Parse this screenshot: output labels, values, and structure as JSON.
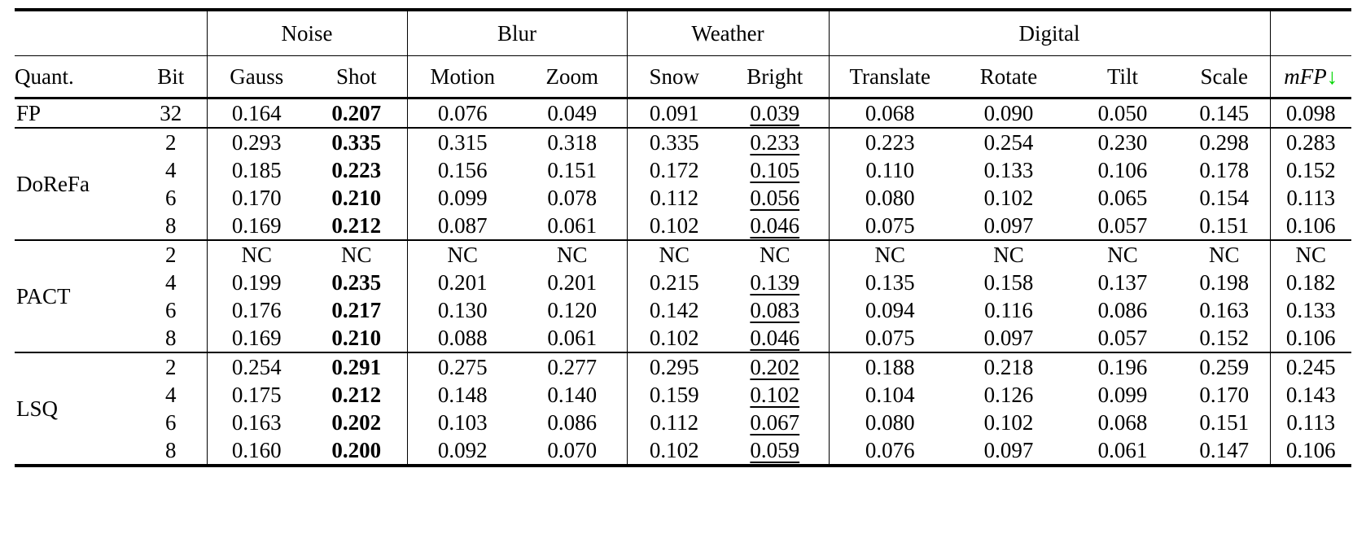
{
  "table": {
    "group_headers": [
      {
        "label": "",
        "span": 2
      },
      {
        "label": "Noise",
        "span": 2
      },
      {
        "label": "Blur",
        "span": 2
      },
      {
        "label": "Weather",
        "span": 2
      },
      {
        "label": "Digital",
        "span": 4
      },
      {
        "label": "",
        "span": 1
      }
    ],
    "column_headers": [
      "Quant.",
      "Bit",
      "Gauss",
      "Shot",
      "Motion",
      "Zoom",
      "Snow",
      "Bright",
      "Translate",
      "Rotate",
      "Tilt",
      "Scale",
      "mFP"
    ],
    "mfp_label": "mFP",
    "mfp_arrow": "↓",
    "arrow_color": "#00d500",
    "sections": [
      {
        "quant": "FP",
        "rows": [
          {
            "bit": "32",
            "values": [
              "0.164",
              "0.207",
              "0.076",
              "0.049",
              "0.091",
              "0.039",
              "0.068",
              "0.090",
              "0.050",
              "0.145",
              "0.098"
            ]
          }
        ]
      },
      {
        "quant": "DoReFa",
        "rows": [
          {
            "bit": "2",
            "values": [
              "0.293",
              "0.335",
              "0.315",
              "0.318",
              "0.335",
              "0.233",
              "0.223",
              "0.254",
              "0.230",
              "0.298",
              "0.283"
            ]
          },
          {
            "bit": "4",
            "values": [
              "0.185",
              "0.223",
              "0.156",
              "0.151",
              "0.172",
              "0.105",
              "0.110",
              "0.133",
              "0.106",
              "0.178",
              "0.152"
            ]
          },
          {
            "bit": "6",
            "values": [
              "0.170",
              "0.210",
              "0.099",
              "0.078",
              "0.112",
              "0.056",
              "0.080",
              "0.102",
              "0.065",
              "0.154",
              "0.113"
            ]
          },
          {
            "bit": "8",
            "values": [
              "0.169",
              "0.212",
              "0.087",
              "0.061",
              "0.102",
              "0.046",
              "0.075",
              "0.097",
              "0.057",
              "0.151",
              "0.106"
            ]
          }
        ]
      },
      {
        "quant": "PACT",
        "rows": [
          {
            "bit": "2",
            "values": [
              "NC",
              "NC",
              "NC",
              "NC",
              "NC",
              "NC",
              "NC",
              "NC",
              "NC",
              "NC",
              "NC"
            ]
          },
          {
            "bit": "4",
            "values": [
              "0.199",
              "0.235",
              "0.201",
              "0.201",
              "0.215",
              "0.139",
              "0.135",
              "0.158",
              "0.137",
              "0.198",
              "0.182"
            ]
          },
          {
            "bit": "6",
            "values": [
              "0.176",
              "0.217",
              "0.130",
              "0.120",
              "0.142",
              "0.083",
              "0.094",
              "0.116",
              "0.086",
              "0.163",
              "0.133"
            ]
          },
          {
            "bit": "8",
            "values": [
              "0.169",
              "0.210",
              "0.088",
              "0.061",
              "0.102",
              "0.046",
              "0.075",
              "0.097",
              "0.057",
              "0.152",
              "0.106"
            ]
          }
        ]
      },
      {
        "quant": "LSQ",
        "rows": [
          {
            "bit": "2",
            "values": [
              "0.254",
              "0.291",
              "0.275",
              "0.277",
              "0.295",
              "0.202",
              "0.188",
              "0.218",
              "0.196",
              "0.259",
              "0.245"
            ]
          },
          {
            "bit": "4",
            "values": [
              "0.175",
              "0.212",
              "0.148",
              "0.140",
              "0.159",
              "0.102",
              "0.104",
              "0.126",
              "0.099",
              "0.170",
              "0.143"
            ]
          },
          {
            "bit": "6",
            "values": [
              "0.163",
              "0.202",
              "0.103",
              "0.086",
              "0.112",
              "0.067",
              "0.080",
              "0.102",
              "0.068",
              "0.151",
              "0.113"
            ]
          },
          {
            "bit": "8",
            "values": [
              "0.160",
              "0.200",
              "0.092",
              "0.070",
              "0.102",
              "0.059",
              "0.076",
              "0.097",
              "0.061",
              "0.147",
              "0.106"
            ]
          }
        ]
      }
    ],
    "style_semantics": {
      "bold_column": "Shot",
      "underlined_column": "Bright",
      "not_converged_value": "NC"
    }
  }
}
